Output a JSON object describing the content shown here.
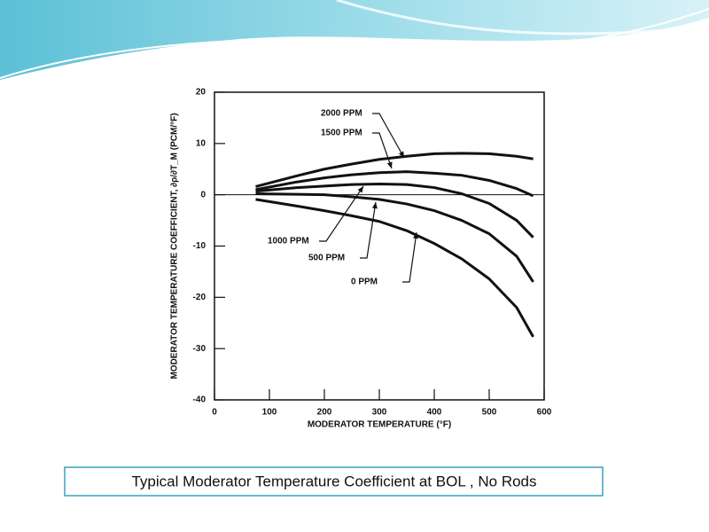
{
  "chart_data": {
    "type": "line",
    "x_label": "MODERATOR TEMPERATURE (°F)",
    "y_label": "MODERATOR TEMPERATURE COEFFICIENT, ∂ρ/∂T_M (PCM/°F)",
    "x": [
      75,
      150,
      200,
      250,
      300,
      350,
      400,
      450,
      500,
      550,
      580
    ],
    "series": [
      {
        "name": "2000 PPM",
        "color": "#111111",
        "values": [
          1.6,
          3.7,
          5.0,
          6.0,
          6.9,
          7.5,
          8.0,
          8.1,
          8.0,
          7.5,
          7.0
        ]
      },
      {
        "name": "1500 PPM",
        "color": "#111111",
        "values": [
          1.0,
          2.5,
          3.3,
          3.9,
          4.3,
          4.5,
          4.2,
          3.8,
          2.8,
          1.2,
          -0.2
        ]
      },
      {
        "name": "1000 PPM",
        "color": "#111111",
        "values": [
          0.7,
          1.4,
          1.7,
          2.0,
          2.1,
          2.0,
          1.4,
          0.2,
          -1.7,
          -5.0,
          -8.3
        ]
      },
      {
        "name": "500 PPM",
        "color": "#111111",
        "values": [
          0.2,
          0.1,
          0,
          -0.4,
          -0.9,
          -1.8,
          -3.1,
          -5.0,
          -7.6,
          -12.0,
          -17.0
        ]
      },
      {
        "name": "0 PPM",
        "color": "#111111",
        "values": [
          -0.9,
          -2.2,
          -3.1,
          -4.1,
          -5.2,
          -7.0,
          -9.5,
          -12.5,
          -16.4,
          -22.0,
          -27.7
        ]
      }
    ],
    "xlim": [
      0,
      600
    ],
    "xticks": [
      0,
      100,
      200,
      300,
      400,
      500,
      600
    ],
    "ylim": [
      -40,
      20
    ],
    "yticks": [
      -40,
      -30,
      -20,
      -10,
      0,
      10,
      20
    ],
    "caption": "Typical Moderator Temperature Coefficient at BOL , No Rods"
  }
}
